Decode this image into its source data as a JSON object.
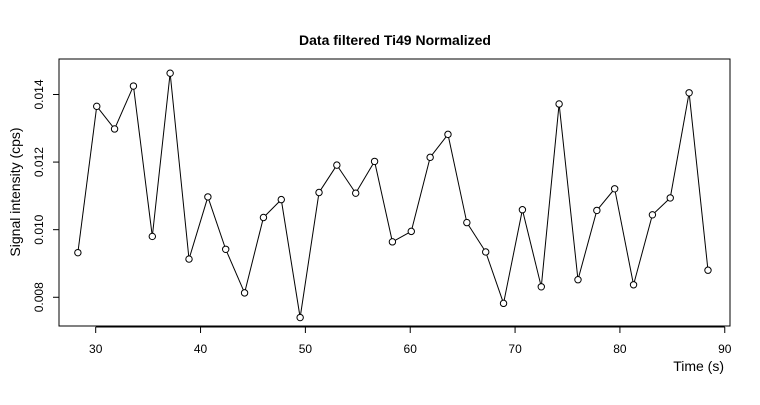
{
  "chart_data": {
    "type": "line",
    "title": "Data filtered Ti49 Normalized",
    "xlabel": "Time (s)",
    "ylabel": "Signal intensity (cps)",
    "xlim": [
      26.5,
      90.5
    ],
    "ylim": [
      0.00715,
      0.01505
    ],
    "x_ticks": [
      30,
      40,
      50,
      60,
      70,
      80,
      90
    ],
    "x_tick_labels": [
      "30",
      "40",
      "50",
      "60",
      "70",
      "80",
      "90"
    ],
    "y_ticks": [
      0.008,
      0.01,
      0.012,
      0.014
    ],
    "y_tick_labels": [
      "0.008",
      "0.010",
      "0.012",
      "0.014"
    ],
    "grid": false,
    "series": [
      {
        "marker": "open-circle",
        "line": true,
        "x": [
          28.3,
          30.1,
          31.8,
          33.6,
          35.4,
          37.1,
          38.9,
          40.7,
          42.4,
          44.2,
          46.0,
          47.7,
          49.5,
          51.3,
          53.0,
          54.8,
          56.6,
          58.3,
          60.1,
          61.9,
          63.6,
          65.4,
          67.2,
          68.9,
          70.7,
          72.5,
          74.2,
          76.0,
          77.8,
          79.5,
          81.3,
          83.1,
          84.8,
          86.6,
          88.4
        ],
        "y": [
          0.00932,
          0.01365,
          0.01298,
          0.01425,
          0.0098,
          0.01463,
          0.00913,
          0.01097,
          0.00942,
          0.00813,
          0.01036,
          0.01089,
          0.0074,
          0.0111,
          0.01191,
          0.01108,
          0.01202,
          0.00964,
          0.00995,
          0.01214,
          0.01282,
          0.01021,
          0.00934,
          0.00782,
          0.01059,
          0.00831,
          0.01372,
          0.00852,
          0.01057,
          0.01121,
          0.00837,
          0.01044,
          0.01094,
          0.01405,
          0.0088
        ]
      }
    ]
  }
}
